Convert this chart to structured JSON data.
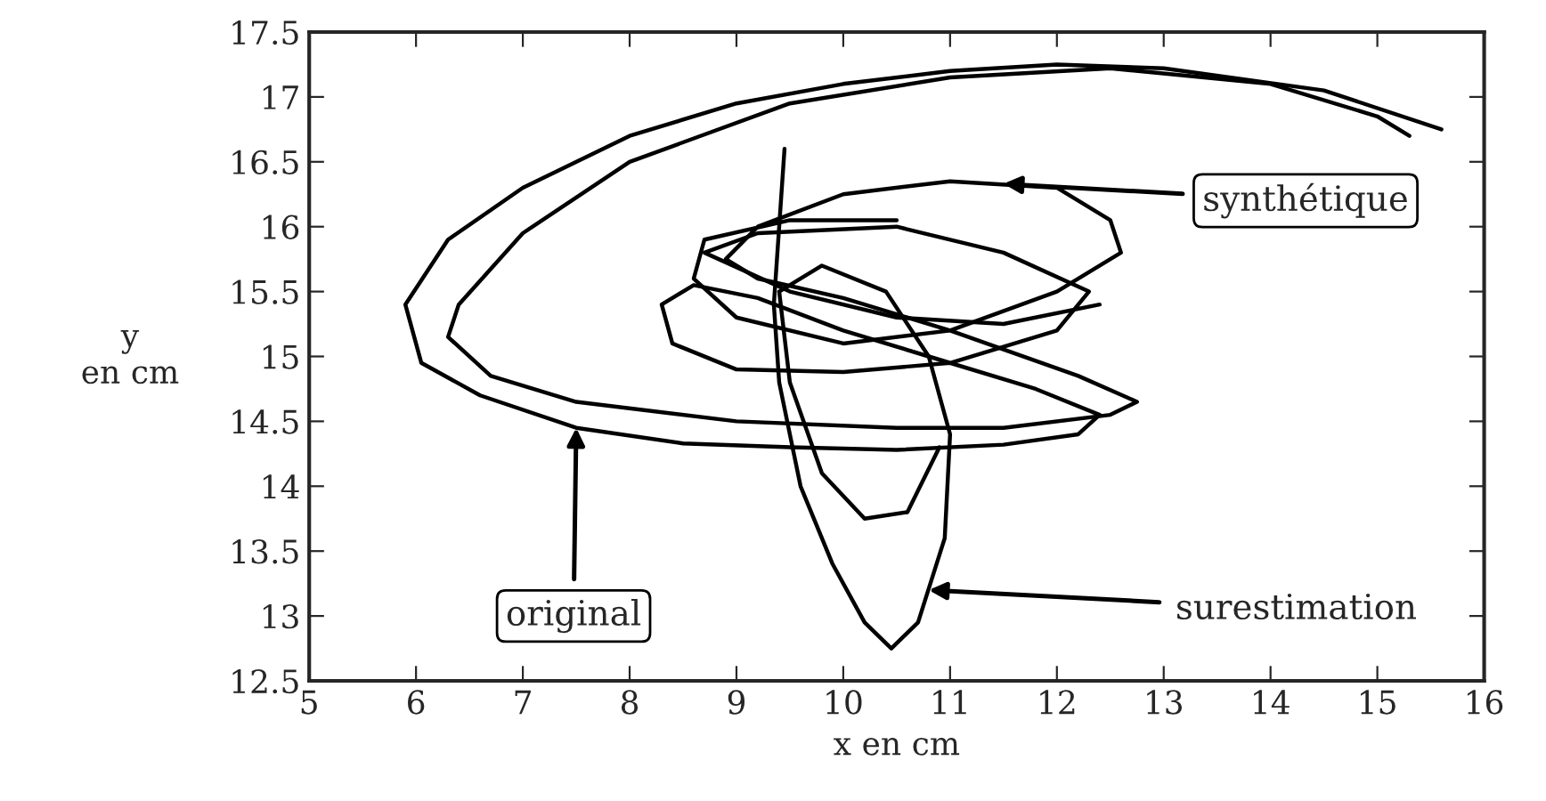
{
  "chart_data": {
    "type": "line",
    "xlabel": "x en cm",
    "ylabel": "y\nen cm",
    "xlim": [
      5,
      16
    ],
    "ylim": [
      12.5,
      17.5
    ],
    "xticks": [
      5,
      6,
      7,
      8,
      9,
      10,
      11,
      12,
      13,
      14,
      15,
      16
    ],
    "yticks": [
      12.5,
      13,
      13.5,
      14,
      14.5,
      15,
      15.5,
      16,
      16.5,
      17,
      17.5
    ],
    "grid": false,
    "legend": false,
    "marker": "none",
    "line_style": "solid",
    "series": [
      {
        "color": "#000000",
        "x": [
          15.6,
          14.5,
          13,
          12,
          11,
          10,
          9,
          8,
          7,
          6.3,
          5.9,
          6.05,
          6.6,
          7.5,
          8.5,
          9.5,
          10.5,
          11.5,
          12.2,
          12.4,
          11.8,
          10.8,
          10,
          9.2,
          8.6,
          8.3,
          8.4,
          9,
          10,
          11,
          12,
          12.3,
          11.5,
          10.5,
          9.2,
          8.7,
          9.5,
          10.5,
          11.5,
          12.4
        ],
        "values": [
          16.75,
          17.05,
          17.22,
          17.25,
          17.2,
          17.1,
          16.95,
          16.7,
          16.3,
          15.9,
          15.4,
          14.95,
          14.7,
          14.45,
          14.33,
          14.3,
          14.28,
          14.32,
          14.4,
          14.55,
          14.75,
          15,
          15.2,
          15.45,
          15.55,
          15.4,
          15.1,
          14.9,
          14.88,
          14.95,
          15.2,
          15.5,
          15.8,
          16,
          15.95,
          15.8,
          15.5,
          15.3,
          15.25,
          15.4
        ]
      },
      {
        "color": "#000000",
        "x": [
          15.3,
          15,
          14,
          12.5,
          11,
          9.5,
          8,
          7,
          6.4,
          6.3,
          6.7,
          7.5,
          9,
          10.5,
          11.5,
          12.5,
          12.75,
          12.2,
          11,
          10,
          9.2,
          8.9,
          9.2,
          10,
          11,
          12,
          12.5,
          12.6,
          12,
          11,
          10,
          9,
          8.6,
          8.7,
          9.5,
          10.5
        ],
        "values": [
          16.7,
          16.85,
          17.1,
          17.22,
          17.15,
          16.95,
          16.5,
          15.95,
          15.4,
          15.15,
          14.85,
          14.65,
          14.5,
          14.45,
          14.45,
          14.55,
          14.65,
          14.85,
          15.2,
          15.45,
          15.6,
          15.75,
          16,
          16.25,
          16.35,
          16.3,
          16.05,
          15.8,
          15.5,
          15.2,
          15.1,
          15.3,
          15.6,
          15.9,
          16.05,
          16.05
        ]
      },
      {
        "color": "#000000",
        "x": [
          9.45,
          9.4,
          9.35,
          9.4,
          9.6,
          9.9,
          10.2,
          10.45,
          10.7,
          10.95,
          11,
          10.8,
          10.4,
          9.8,
          9.4,
          9.5,
          9.8,
          10.2,
          10.6,
          10.9
        ],
        "values": [
          16.6,
          16,
          15.4,
          14.8,
          14,
          13.4,
          12.95,
          12.75,
          12.95,
          13.6,
          14.4,
          15,
          15.5,
          15.7,
          15.5,
          14.8,
          14.1,
          13.75,
          13.8,
          14.3
        ]
      }
    ],
    "annotations": [
      {
        "text": "original",
        "x": 7.5,
        "y": 14.45
      },
      {
        "text": "synthétique",
        "x": 11.5,
        "y": 16.33
      },
      {
        "text": "surestimation",
        "x": 10.8,
        "y": 13.2
      }
    ]
  }
}
